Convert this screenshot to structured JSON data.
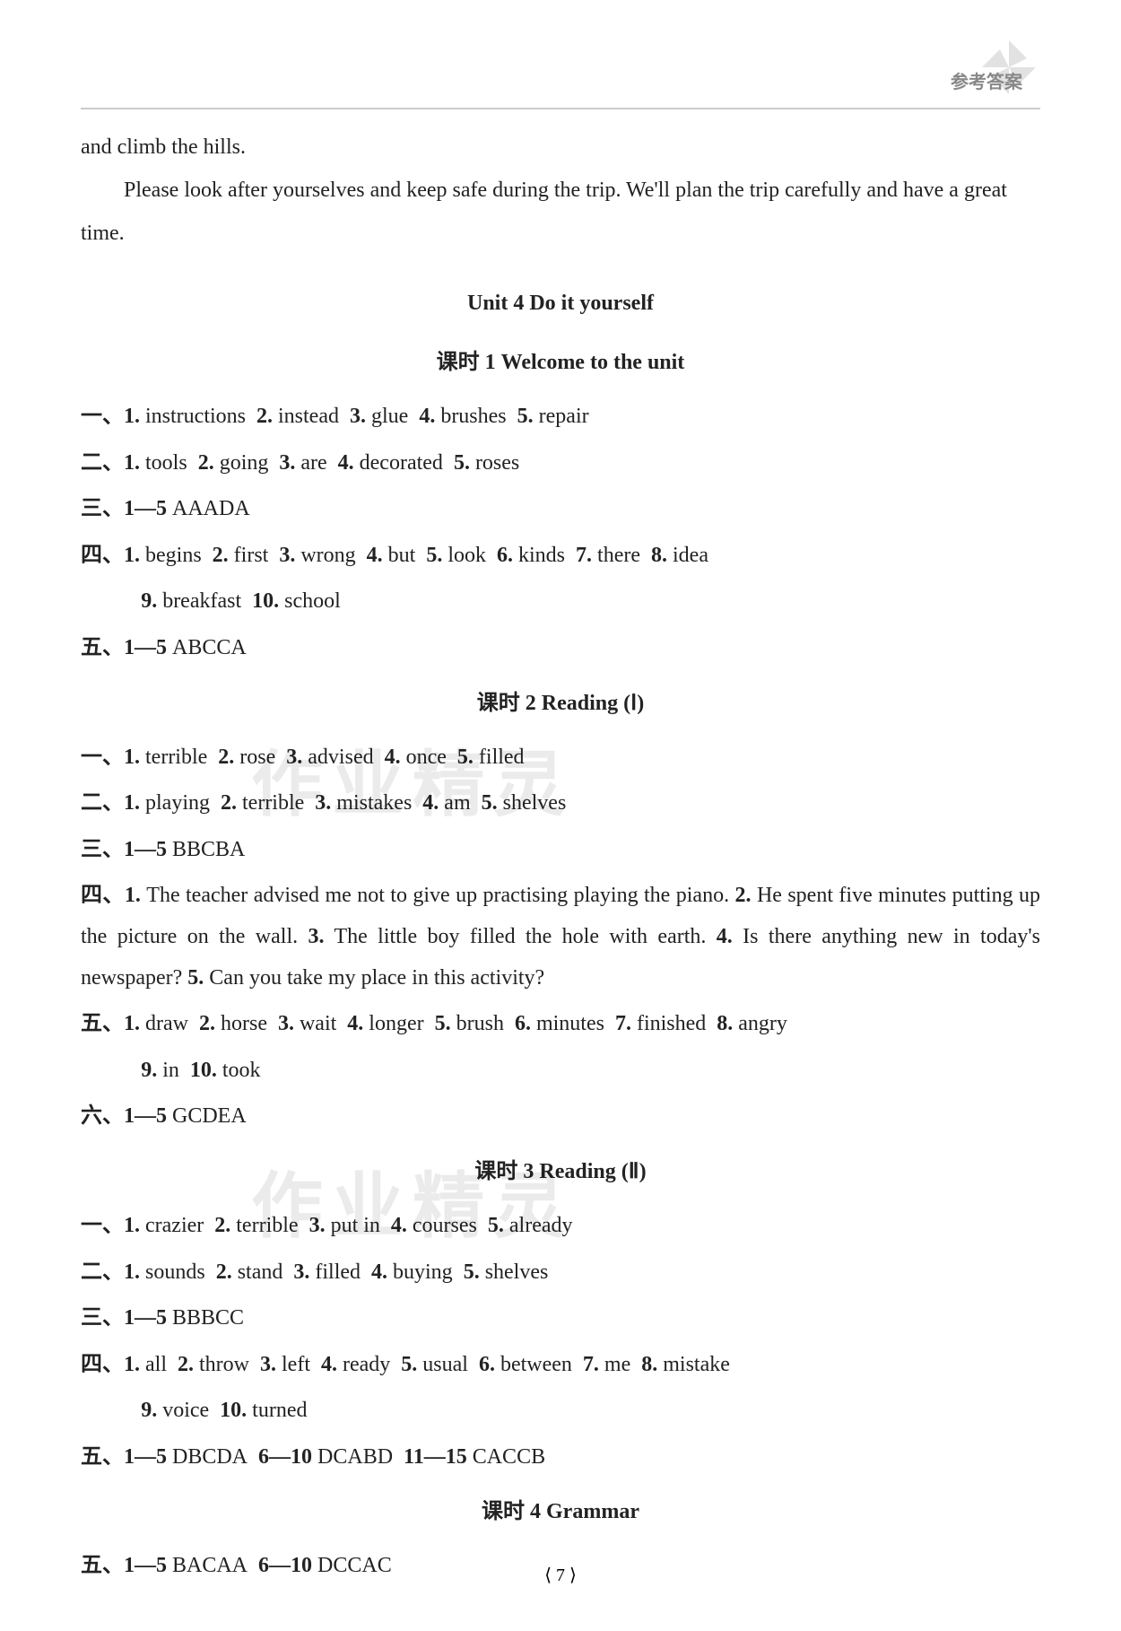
{
  "header": {
    "label": "参考答案",
    "icon_color": "#cccccc"
  },
  "intro": {
    "line1": "and climb the hills.",
    "line2": "Please look after yourselves and keep safe during the trip. We'll plan the trip carefully and have a great time."
  },
  "unit_heading": "Unit 4  Do it yourself",
  "sections": [
    {
      "title": "课时 1  Welcome to the unit",
      "rows": [
        {
          "label": "一、",
          "parts": [
            "1. instructions",
            "2. instead",
            "3. glue",
            "4. brushes",
            "5. repair"
          ]
        },
        {
          "label": "二、",
          "parts": [
            "1. tools",
            "2. going",
            "3. are",
            "4. decorated",
            "5. roses"
          ]
        },
        {
          "label": "三、",
          "parts": [
            "1—5 AAADA"
          ]
        },
        {
          "label": "四、",
          "parts": [
            "1. begins",
            "2. first",
            "3. wrong",
            "4. but",
            "5. look",
            "6. kinds",
            "7. there",
            "8. idea"
          ],
          "cont": [
            "9. breakfast",
            "10. school"
          ]
        },
        {
          "label": "五、",
          "parts": [
            "1—5 ABCCA"
          ]
        }
      ]
    },
    {
      "title": "课时 2  Reading (Ⅰ)",
      "rows": [
        {
          "label": "一、",
          "parts": [
            "1. terrible",
            "2. rose",
            "3. advised",
            "4. once",
            "5. filled"
          ]
        },
        {
          "label": "二、",
          "parts": [
            "1. playing",
            "2. terrible",
            "3. mistakes",
            "4. am",
            "5. shelves"
          ]
        },
        {
          "label": "三、",
          "parts": [
            "1—5 BBCBA"
          ]
        },
        {
          "label": "四、",
          "freeform": "1. The teacher advised me not to give up practising playing the piano.  2. He spent five minutes putting up the picture on the wall.  3. The little boy filled the hole with earth. 4. Is there anything new in today's newspaper?   5. Can you take my place in this activity?"
        },
        {
          "label": "五、",
          "parts": [
            "1. draw",
            "2. horse",
            "3. wait",
            "4. longer",
            "5. brush",
            "6. minutes",
            "7. finished",
            "8. angry"
          ],
          "cont": [
            "9. in",
            "10. took"
          ]
        },
        {
          "label": "六、",
          "parts": [
            "1—5 GCDEA"
          ]
        }
      ]
    },
    {
      "title": "课时 3  Reading (Ⅱ)",
      "rows": [
        {
          "label": "一、",
          "parts": [
            "1. crazier",
            "2. terrible",
            "3. put in",
            "4. courses",
            "5. already"
          ]
        },
        {
          "label": "二、",
          "parts": [
            "1. sounds",
            "2. stand",
            "3. filled",
            "4. buying",
            "5. shelves"
          ]
        },
        {
          "label": "三、",
          "parts": [
            "1—5 BBBCC"
          ]
        },
        {
          "label": "四、",
          "parts": [
            "1. all",
            "2. throw",
            "3. left",
            "4. ready",
            "5. usual",
            "6. between",
            "7. me",
            "8. mistake"
          ],
          "cont": [
            "9. voice",
            "10. turned"
          ]
        },
        {
          "label": "五、",
          "parts": [
            "1—5 DBCDA",
            "6—10 DCABD",
            "11—15 CACCB"
          ]
        }
      ]
    },
    {
      "title": "课时 4  Grammar",
      "rows": [
        {
          "label": "五、",
          "parts": [
            "1—5 BACAA",
            "6—10 DCCAC"
          ]
        }
      ]
    }
  ],
  "page_number": "7",
  "watermark_text": "作业精灵",
  "colors": {
    "text": "#222222",
    "bg": "#ffffff",
    "header_label": "#888888",
    "divider": "#cccccc",
    "watermark": "rgba(0,0,0,0.08)"
  },
  "typography": {
    "body_fontsize": 24,
    "heading_fontsize": 24,
    "line_height": 2.0
  }
}
